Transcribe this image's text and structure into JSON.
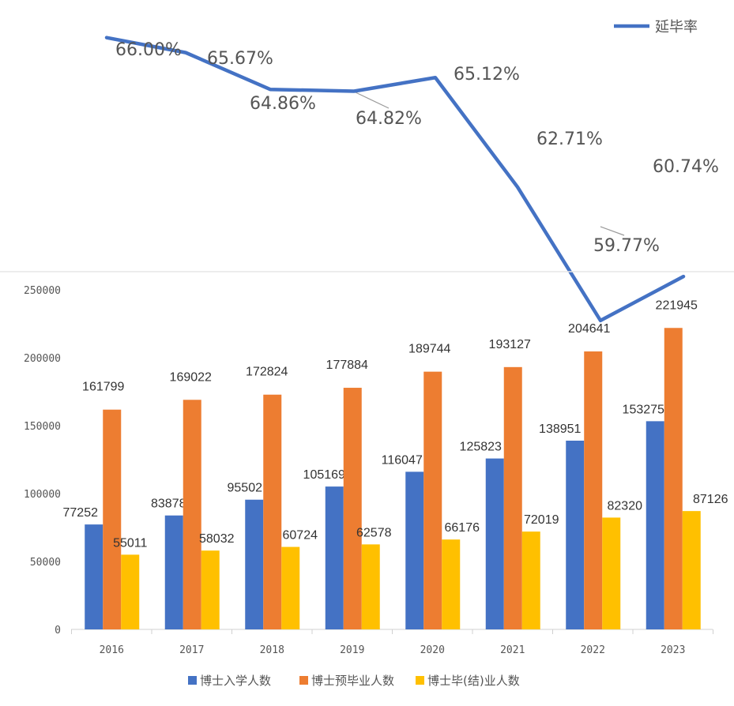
{
  "chart_data": [
    {
      "type": "line",
      "x": [
        "2016",
        "2017",
        "2018",
        "2019",
        "2020",
        "2021",
        "2022",
        "2023"
      ],
      "series": [
        {
          "name": "延毕率",
          "values": [
            66.0,
            65.67,
            64.86,
            64.82,
            65.12,
            62.71,
            59.77,
            60.74
          ],
          "labels": [
            "66.00%",
            "65.67%",
            "64.86%",
            "64.82%",
            "65.12%",
            "62.71%",
            "59.77%",
            "60.74%"
          ],
          "color": "#4472C4"
        }
      ],
      "legend": "top-right",
      "grid": false
    },
    {
      "type": "bar",
      "categories": [
        "2016",
        "2017",
        "2018",
        "2019",
        "2020",
        "2021",
        "2022",
        "2023"
      ],
      "series": [
        {
          "name": "博士入学人数",
          "color": "#4472C4",
          "values": [
            77252,
            83878,
            95502,
            105169,
            116047,
            125823,
            138951,
            153275
          ]
        },
        {
          "name": "博士预毕业人数",
          "color": "#ED7D31",
          "values": [
            161799,
            169022,
            172824,
            177884,
            189744,
            193127,
            204641,
            221945
          ]
        },
        {
          "name": "博士毕(结)业人数",
          "color": "#FFC000",
          "values": [
            55011,
            58032,
            60724,
            62578,
            66176,
            72019,
            82320,
            87126
          ]
        }
      ],
      "yticks": [
        "0",
        "50000",
        "100000",
        "150000",
        "200000",
        "250000"
      ],
      "ylim": [
        0,
        250000
      ],
      "legend": "bottom",
      "grid": false
    }
  ]
}
